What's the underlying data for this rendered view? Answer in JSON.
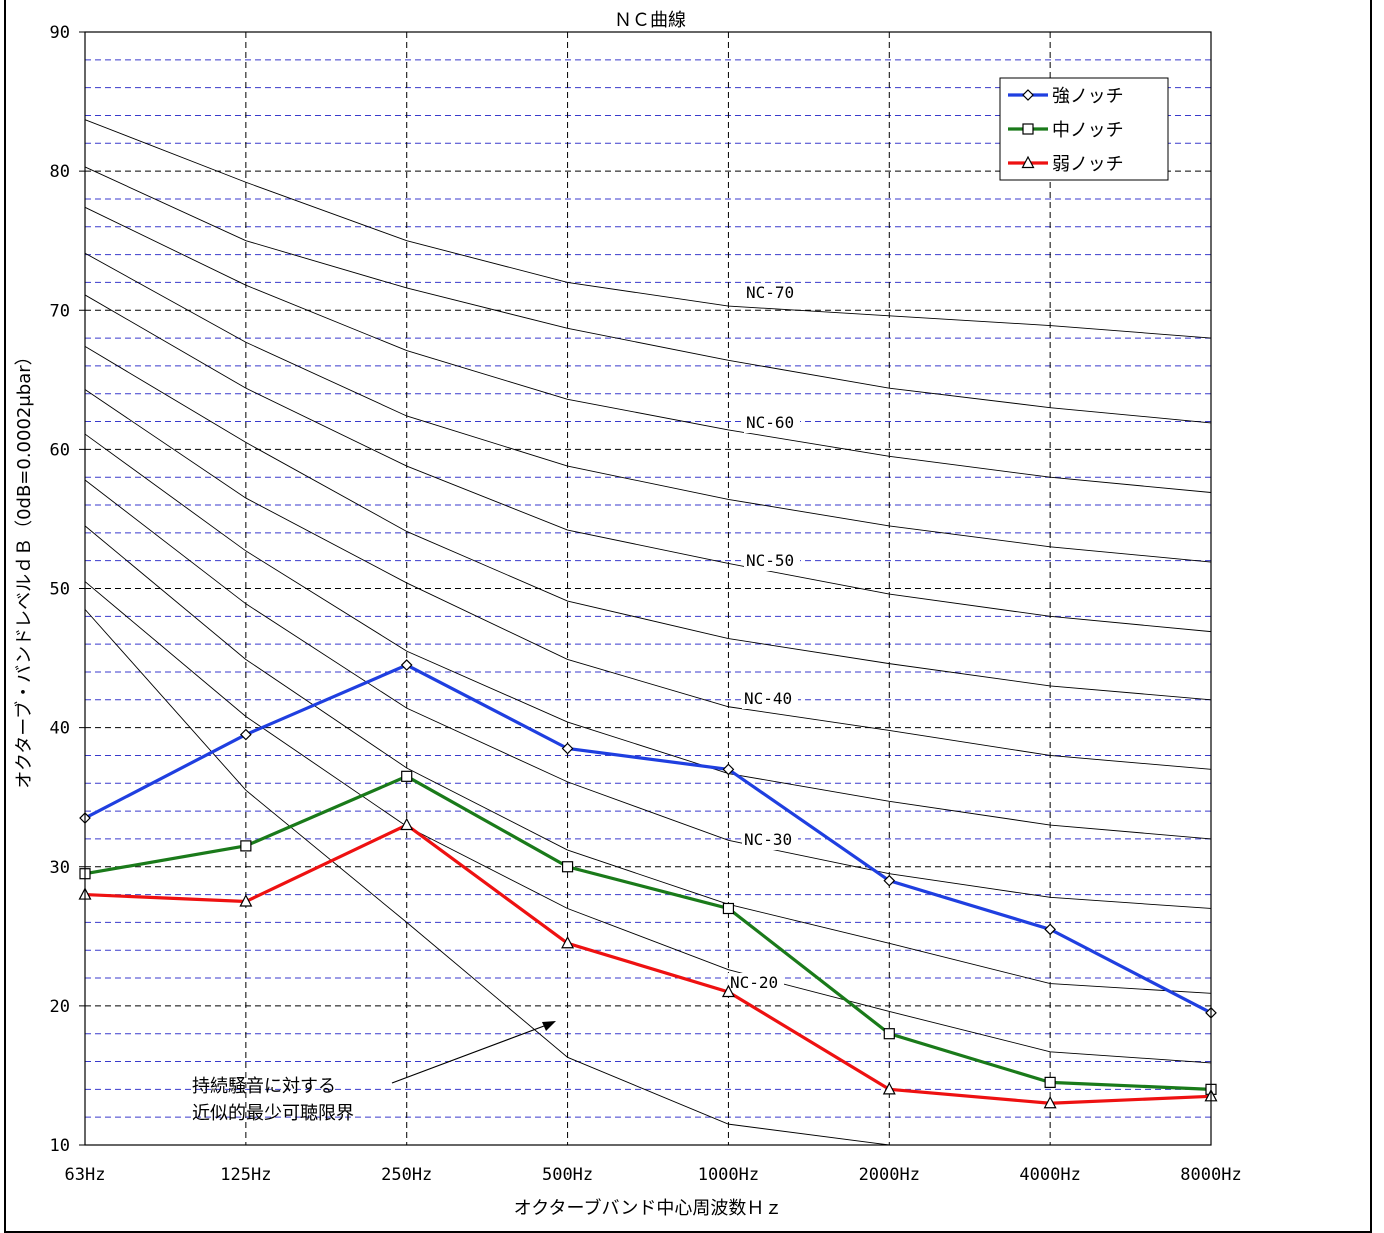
{
  "chart_data": {
    "type": "line",
    "title": "ＮＣ曲線",
    "xlabel": "オクターブバンド中心周波数Ｈｚ",
    "ylabel": "オクターブ・バンドレベルｄＢ（0dB=0.0002μbar）",
    "categories": [
      "63Hz",
      "125Hz",
      "250Hz",
      "500Hz",
      "1000Hz",
      "2000Hz",
      "4000Hz",
      "8000Hz"
    ],
    "ylim": [
      10,
      90
    ],
    "yticks": [
      10,
      20,
      30,
      40,
      50,
      60,
      70,
      80,
      90
    ],
    "grid": true,
    "legend_position": "top-right",
    "series": [
      {
        "name": "強ノッチ",
        "color": "#1f3fe0",
        "marker": "diamond",
        "values": [
          33.5,
          39.5,
          44.5,
          38.5,
          37,
          29,
          25.5,
          19.5
        ]
      },
      {
        "name": "中ノッチ",
        "color": "#1a7a1a",
        "marker": "square",
        "values": [
          29.5,
          31.5,
          36.5,
          30,
          27,
          18,
          14.5,
          14
        ]
      },
      {
        "name": "弱ノッチ",
        "color": "#ee1111",
        "marker": "triangle",
        "values": [
          28,
          27.5,
          33,
          24.5,
          21,
          14,
          13,
          13.5
        ]
      }
    ],
    "nc_curves": [
      {
        "label": "NC-70",
        "values": [
          83.7,
          79.2,
          75,
          72,
          70.3,
          69.6,
          68.9,
          68
        ]
      },
      {
        "label": "",
        "values": [
          80.3,
          75,
          71.6,
          68.7,
          66.4,
          64.4,
          63,
          61.9
        ]
      },
      {
        "label": "NC-60",
        "values": [
          77.4,
          71.8,
          67.1,
          63.6,
          61.4,
          59.5,
          58,
          56.9
        ]
      },
      {
        "label": "",
        "values": [
          74.1,
          67.7,
          62.4,
          58.8,
          56.4,
          54.5,
          53,
          51.9
        ]
      },
      {
        "label": "NC-50",
        "values": [
          71.1,
          64.4,
          58.8,
          54.2,
          51.8,
          49.6,
          48,
          46.9
        ]
      },
      {
        "label": "",
        "values": [
          67.4,
          60.5,
          54.1,
          49.1,
          46.4,
          44.6,
          43,
          42
        ]
      },
      {
        "label": "NC-40",
        "values": [
          64.3,
          56.5,
          50.4,
          44.9,
          41.5,
          39.8,
          38,
          37
        ]
      },
      {
        "label": "",
        "values": [
          61.1,
          52.7,
          45.5,
          40.4,
          36.7,
          34.7,
          33,
          32
        ]
      },
      {
        "label": "NC-30",
        "values": [
          57.8,
          48.9,
          41.4,
          36.1,
          31.9,
          29.5,
          27.8,
          27
        ]
      },
      {
        "label": "",
        "values": [
          54.5,
          44.9,
          37.1,
          31.2,
          27.3,
          24.5,
          21.6,
          20.9
        ]
      },
      {
        "label": "NC-20",
        "values": [
          50.5,
          40.8,
          32.9,
          27,
          22.6,
          19.6,
          16.7,
          15.9
        ]
      },
      {
        "label": "",
        "values": [
          48.5,
          35.5,
          26,
          16.3,
          11.5,
          10
        ]
      }
    ],
    "annotation": {
      "line1": "持続騒音に対する",
      "line2": "近似的最少可聴限界"
    }
  }
}
